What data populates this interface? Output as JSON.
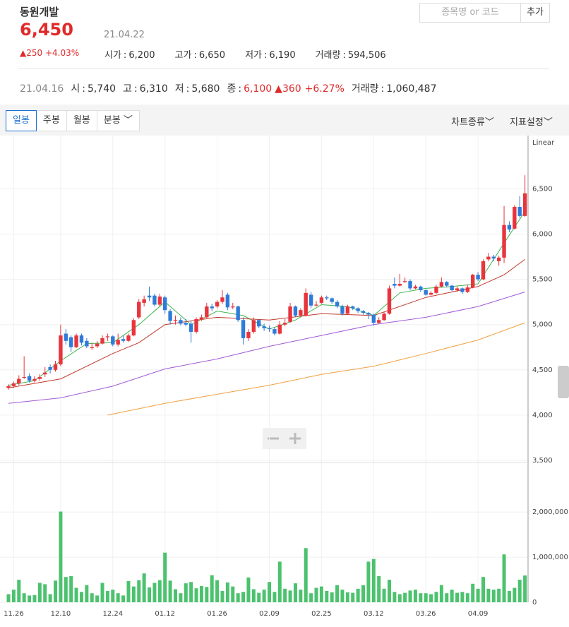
{
  "header": {
    "name": "동원개발",
    "price": "6,450",
    "date": "21.04.22",
    "change": "250",
    "change_pct": "+4.03%",
    "stats": [
      {
        "label": "시가",
        "value": "6,200"
      },
      {
        "label": "고가",
        "value": "6,650"
      },
      {
        "label": "저가",
        "value": "6,190"
      },
      {
        "label": "거래량",
        "value": "594,506"
      }
    ],
    "search_placeholder": "종목명 or 코드",
    "add_button": "추가"
  },
  "prev": {
    "date": "21.04.16",
    "items": [
      {
        "label": "시",
        "value": "5,740"
      },
      {
        "label": "고",
        "value": "6,310"
      },
      {
        "label": "저",
        "value": "5,680"
      },
      {
        "label": "종",
        "value": "6,100"
      }
    ],
    "change": "360",
    "change_pct": "+6.27%",
    "volume_label": "거래량",
    "volume": "1,060,487"
  },
  "toolbar": {
    "tabs": [
      "일봉",
      "주봉",
      "월봉",
      "분봉"
    ],
    "right": [
      "차트종류",
      "지표설정"
    ]
  },
  "chart_data": {
    "type": "candlestick",
    "scale_label": "Linear",
    "categories": [
      null,
      "11.26",
      null,
      null,
      null,
      null,
      null,
      null,
      null,
      null,
      "12.10",
      null,
      null,
      null,
      null,
      null,
      null,
      null,
      null,
      null,
      "12.24",
      null,
      null,
      null,
      null,
      null,
      null,
      null,
      null,
      null,
      "01.12",
      null,
      null,
      null,
      null,
      null,
      null,
      null,
      null,
      null,
      "01.26",
      null,
      null,
      null,
      null,
      null,
      null,
      null,
      null,
      null,
      "02.09",
      null,
      null,
      null,
      null,
      null,
      null,
      null,
      null,
      null,
      "02.25",
      null,
      null,
      null,
      null,
      null,
      null,
      null,
      null,
      null,
      "03.12",
      null,
      null,
      null,
      null,
      null,
      null,
      null,
      null,
      null,
      "03.26",
      null,
      null,
      null,
      null,
      null,
      null,
      null,
      null,
      null,
      "04.09",
      null,
      null,
      null,
      null,
      null,
      null,
      null,
      null,
      null
    ],
    "ohlc": [
      [
        4300,
        4340,
        4280,
        4320
      ],
      [
        4320,
        4370,
        4300,
        4350
      ],
      [
        4350,
        4440,
        4330,
        4400
      ],
      [
        4420,
        4650,
        4400,
        4420
      ],
      [
        4430,
        4460,
        4360,
        4380
      ],
      [
        4380,
        4430,
        4360,
        4400
      ],
      [
        4400,
        4450,
        4380,
        4420
      ],
      [
        4450,
        4530,
        4420,
        4470
      ],
      [
        4530,
        4560,
        4460,
        4500
      ],
      [
        4500,
        4600,
        4480,
        4560
      ],
      [
        4560,
        5000,
        4540,
        4880
      ],
      [
        4900,
        4950,
        4780,
        4820
      ],
      [
        4860,
        4880,
        4700,
        4750
      ],
      [
        4750,
        4900,
        4740,
        4880
      ],
      [
        4880,
        4900,
        4770,
        4800
      ],
      [
        4820,
        4850,
        4740,
        4760
      ],
      [
        4740,
        4800,
        4720,
        4750
      ],
      [
        4760,
        4820,
        4740,
        4790
      ],
      [
        4790,
        4880,
        4780,
        4850
      ],
      [
        4860,
        4900,
        4820,
        4870
      ],
      [
        4870,
        4880,
        4760,
        4780
      ],
      [
        4780,
        4900,
        4760,
        4830
      ],
      [
        4840,
        4880,
        4800,
        4820
      ],
      [
        4820,
        4900,
        4810,
        4880
      ],
      [
        4880,
        5070,
        4870,
        5050
      ],
      [
        5080,
        5280,
        5060,
        5250
      ],
      [
        5240,
        5320,
        5200,
        5280
      ],
      [
        5320,
        5420,
        5260,
        5300
      ],
      [
        5320,
        5340,
        5200,
        5220
      ],
      [
        5220,
        5340,
        5200,
        5310
      ],
      [
        5300,
        5320,
        5120,
        5160
      ],
      [
        5150,
        5170,
        5000,
        5040
      ],
      [
        5040,
        5100,
        5000,
        5050
      ],
      [
        5050,
        5080,
        4990,
        5010
      ],
      [
        5020,
        5060,
        4980,
        5000
      ],
      [
        5010,
        5040,
        4800,
        4920
      ],
      [
        4920,
        5080,
        4900,
        5060
      ],
      [
        5060,
        5110,
        5040,
        5080
      ],
      [
        5080,
        5240,
        5070,
        5200
      ],
      [
        5200,
        5230,
        5150,
        5180
      ],
      [
        5200,
        5270,
        5180,
        5250
      ],
      [
        5250,
        5380,
        5230,
        5300
      ],
      [
        5330,
        5350,
        5160,
        5190
      ],
      [
        5190,
        5240,
        5170,
        5200
      ],
      [
        5200,
        5210,
        5030,
        5050
      ],
      [
        5050,
        5080,
        4780,
        4850
      ],
      [
        4850,
        4950,
        4820,
        4920
      ],
      [
        4920,
        5080,
        4900,
        5050
      ],
      [
        5050,
        5060,
        4960,
        4980
      ],
      [
        4980,
        5010,
        4930,
        4960
      ],
      [
        4960,
        4990,
        4920,
        4950
      ],
      [
        4950,
        4970,
        4880,
        4900
      ],
      [
        4900,
        5040,
        4890,
        5000
      ],
      [
        5000,
        5060,
        4980,
        5020
      ],
      [
        5030,
        5240,
        5020,
        5200
      ],
      [
        5200,
        5210,
        5080,
        5100
      ],
      [
        5100,
        5180,
        5090,
        5160
      ],
      [
        5100,
        5400,
        5090,
        5350
      ],
      [
        5330,
        5360,
        5180,
        5210
      ],
      [
        5210,
        5260,
        5200,
        5220
      ],
      [
        5240,
        5320,
        5230,
        5300
      ],
      [
        5300,
        5320,
        5270,
        5290
      ],
      [
        5290,
        5300,
        5230,
        5250
      ],
      [
        5250,
        5270,
        5180,
        5200
      ],
      [
        5200,
        5220,
        5100,
        5120
      ],
      [
        5120,
        5220,
        5110,
        5200
      ],
      [
        5200,
        5210,
        5160,
        5180
      ],
      [
        5180,
        5190,
        5130,
        5150
      ],
      [
        5150,
        5160,
        5110,
        5130
      ],
      [
        5130,
        5140,
        5060,
        5110
      ],
      [
        5110,
        5120,
        4990,
        5020
      ],
      [
        5020,
        5080,
        5010,
        5050
      ],
      [
        5050,
        5140,
        5040,
        5120
      ],
      [
        5120,
        5430,
        5110,
        5400
      ],
      [
        5450,
        5520,
        5400,
        5430
      ],
      [
        5430,
        5560,
        5420,
        5450
      ],
      [
        5470,
        5520,
        5460,
        5480
      ],
      [
        5480,
        5500,
        5380,
        5400
      ],
      [
        5400,
        5440,
        5390,
        5420
      ],
      [
        5420,
        5430,
        5360,
        5380
      ],
      [
        5380,
        5390,
        5320,
        5330
      ],
      [
        5330,
        5370,
        5320,
        5350
      ],
      [
        5350,
        5440,
        5340,
        5420
      ],
      [
        5420,
        5520,
        5410,
        5470
      ],
      [
        5470,
        5480,
        5410,
        5430
      ],
      [
        5430,
        5440,
        5370,
        5380
      ],
      [
        5380,
        5420,
        5360,
        5400
      ],
      [
        5400,
        5410,
        5340,
        5360
      ],
      [
        5360,
        5440,
        5350,
        5410
      ],
      [
        5410,
        5560,
        5400,
        5550
      ],
      [
        5550,
        5580,
        5480,
        5500
      ],
      [
        5500,
        5720,
        5490,
        5700
      ],
      [
        5720,
        5790,
        5700,
        5750
      ],
      [
        5750,
        5770,
        5700,
        5730
      ],
      [
        5700,
        5760,
        5650,
        5740
      ],
      [
        5740,
        6310,
        5680,
        6100
      ],
      [
        6100,
        6140,
        6020,
        6050
      ],
      [
        6060,
        6320,
        6050,
        6300
      ],
      [
        6300,
        6420,
        6180,
        6200
      ],
      [
        6200,
        6650,
        6190,
        6450
      ]
    ],
    "up_color": "#e8343c",
    "down_color": "#2f7bd9",
    "moving_averages": [
      {
        "color": "#3cb44b",
        "x": [
          0,
          5,
          10,
          15,
          20,
          25,
          30,
          35,
          40,
          45,
          50,
          55,
          60,
          65,
          70,
          75,
          80,
          85,
          90,
          95,
          99
        ],
        "values": [
          4330,
          4380,
          4600,
          4790,
          4800,
          5000,
          5250,
          5000,
          5150,
          5100,
          4950,
          5050,
          5220,
          5200,
          5100,
          5350,
          5400,
          5420,
          5450,
          5900,
          6250
        ]
      },
      {
        "color": "#c0392b",
        "x": [
          0,
          10,
          20,
          25,
          30,
          40,
          50,
          60,
          70,
          80,
          90,
          95,
          99
        ],
        "values": [
          4300,
          4400,
          4680,
          4800,
          5000,
          5080,
          5050,
          5120,
          5100,
          5300,
          5420,
          5550,
          5720
        ]
      },
      {
        "color": "#a25ad6",
        "x": [
          0,
          10,
          20,
          30,
          40,
          50,
          60,
          70,
          80,
          90,
          99
        ],
        "values": [
          4130,
          4190,
          4320,
          4510,
          4620,
          4760,
          4880,
          5000,
          5080,
          5200,
          5360
        ]
      },
      {
        "color": "#f0a040",
        "x": [
          19,
          30,
          40,
          50,
          60,
          70,
          80,
          90,
          99
        ],
        "values": [
          4000,
          4130,
          4230,
          4330,
          4450,
          4540,
          4680,
          4830,
          5020
        ]
      }
    ],
    "ylim": [
      3500,
      7010
    ],
    "yticks": [
      {
        "value": 3500,
        "label": "3,500"
      },
      {
        "value": 4000,
        "label": "4,000"
      },
      {
        "value": 4500,
        "label": "4,500"
      },
      {
        "value": 5000,
        "label": "5,000"
      },
      {
        "value": 5500,
        "label": "5,500"
      },
      {
        "value": 6000,
        "label": "6,000"
      },
      {
        "value": 6500,
        "label": "6,500"
      }
    ],
    "volume": [
      180000,
      280000,
      500000,
      200000,
      150000,
      160000,
      430000,
      400000,
      180000,
      480000,
      2010000,
      560000,
      580000,
      320000,
      230000,
      380000,
      200000,
      150000,
      430000,
      250000,
      280000,
      200000,
      150000,
      470000,
      350000,
      490000,
      640000,
      330000,
      430000,
      490000,
      1100000,
      480000,
      290000,
      200000,
      420000,
      450000,
      310000,
      360000,
      340000,
      600000,
      490000,
      250000,
      440000,
      350000,
      200000,
      230000,
      550000,
      290000,
      210000,
      280000,
      450000,
      230000,
      900000,
      300000,
      260000,
      420000,
      280000,
      1200000,
      200000,
      320000,
      350000,
      250000,
      220000,
      380000,
      280000,
      220000,
      210000,
      300000,
      380000,
      900000,
      960000,
      580000,
      300000,
      500000,
      230000,
      180000,
      210000,
      260000,
      280000,
      200000,
      200000,
      180000,
      230000,
      380000,
      200000,
      280000,
      210000,
      230000,
      200000,
      410000,
      300000,
      560000,
      300000,
      280000,
      300000,
      1060487,
      250000,
      320000,
      500000,
      594506
    ],
    "volume_color": "#4cc26e",
    "volume_ylim": [
      0,
      3050000
    ],
    "volume_ticks": [
      0,
      {
        "value": 1000000,
        "label": "1,000,000"
      },
      {
        "value": 2000000,
        "label": "2,000,000"
      }
    ],
    "grid": true
  }
}
